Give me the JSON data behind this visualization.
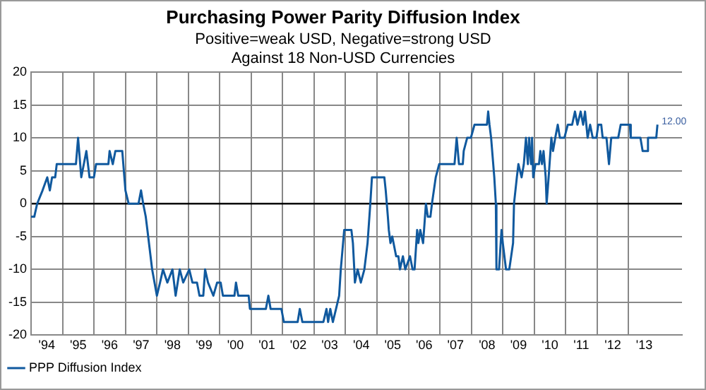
{
  "chart_data": {
    "type": "line",
    "title": "Purchasing Power Parity Diffusion Index",
    "subtitle": "Positive=weak USD, Negative=strong USD\nAgainst 18 Non-USD Currencies",
    "x": [
      "1994-01-01",
      "1994-02-07",
      "1994-03-13",
      "1994-05-14",
      "1994-07-08",
      "1994-08-07",
      "1994-09-02",
      "1994-10-08",
      "1994-10-26",
      "1995-06-06",
      "1995-07-01",
      "1995-08-07",
      "1995-10-05",
      "1995-11-11",
      "1996-01-01",
      "1996-01-26",
      "1996-06-17",
      "1996-07-01",
      "1996-08-07",
      "1996-09-06",
      "1996-11-25",
      "1997-01-01",
      "1997-02-07",
      "1997-06-02",
      "1997-07-01",
      "1997-07-26",
      "1997-08-25",
      "1997-09-13",
      "1997-11-07",
      "1998-01-01",
      "1998-02-07",
      "1998-03-13",
      "1998-05-03",
      "1998-07-01",
      "1998-08-07",
      "1998-09-24",
      "1998-11-03",
      "1999-01-12",
      "1999-02-18",
      "1999-04-12",
      "1999-05-11",
      "1999-06-24",
      "1999-07-15",
      "1999-08-18",
      "1999-10-19",
      "1999-12-02",
      "2000-01-12",
      "2000-02-07",
      "2000-06-20",
      "2000-07-08",
      "2000-08-03",
      "2000-12-02",
      "2000-12-17",
      "2001-06-20",
      "2001-07-19",
      "2001-08-14",
      "2001-12-17",
      "2002-01-15",
      "2002-06-24",
      "2002-07-19",
      "2002-08-18",
      "2003-04-19",
      "2003-05-25",
      "2003-06-13",
      "2003-07-08",
      "2003-08-07",
      "2003-09-13",
      "2003-10-19",
      "2003-11-07",
      "2003-12-17",
      "2004-03-09",
      "2004-03-27",
      "2004-04-12",
      "2004-04-19",
      "2004-05-21",
      "2004-06-27",
      "2004-08-07",
      "2004-09-13",
      "2004-10-15",
      "2004-11-03",
      "2005-03-27",
      "2005-04-12",
      "2005-05-07",
      "2005-05-18",
      "2005-06-06",
      "2005-06-27",
      "2005-08-11",
      "2005-09-06",
      "2005-09-24",
      "2005-10-29",
      "2005-11-25",
      "2006-01-19",
      "2006-02-18",
      "2006-03-13",
      "2006-04-12",
      "2006-04-26",
      "2006-05-18",
      "2006-06-20",
      "2006-07-12",
      "2006-07-23",
      "2006-08-14",
      "2006-09-13",
      "2006-10-01",
      "2006-11-14",
      "2006-12-24",
      "2007-06-20",
      "2007-07-15",
      "2007-08-11",
      "2007-09-24",
      "2007-10-05",
      "2007-11-14",
      "2007-12-27",
      "2008-02-07",
      "2008-07-01",
      "2008-07-15",
      "2008-07-30",
      "2008-08-18",
      "2008-09-24",
      "2008-10-12",
      "2008-10-19",
      "2008-11-18",
      "2008-12-17",
      "2009-01-01",
      "2009-02-07",
      "2009-03-17",
      "2009-04-08",
      "2009-04-30",
      "2009-05-11",
      "2009-06-13",
      "2009-07-01",
      "2009-08-07",
      "2009-09-02",
      "2009-09-27",
      "2009-10-19",
      "2009-11-03",
      "2009-11-25",
      "2009-12-06",
      "2009-12-20",
      "2010-01-15",
      "2010-02-25",
      "2010-03-13",
      "2010-04-01",
      "2010-04-19",
      "2010-05-14",
      "2010-05-25",
      "2010-06-17",
      "2010-07-19",
      "2010-08-07",
      "2010-09-02",
      "2010-10-01",
      "2010-10-26",
      "2010-12-17",
      "2011-01-26",
      "2011-03-17",
      "2011-04-19",
      "2011-05-18",
      "2011-06-24",
      "2011-07-23",
      "2011-08-14",
      "2011-08-29",
      "2011-09-13",
      "2011-10-12",
      "2011-11-11",
      "2011-12-24",
      "2012-01-15",
      "2012-02-18",
      "2012-03-06",
      "2012-04-19",
      "2012-05-18",
      "2012-06-13",
      "2012-09-02",
      "2012-10-01",
      "2013-01-15",
      "2013-01-26",
      "2013-05-18",
      "2013-06-13",
      "2013-08-03",
      "2013-08-14",
      "2013-11-18",
      "2013-12-02"
    ],
    "series": [
      {
        "name": "PPP Diffusion Index",
        "color": "#10599e",
        "values": [
          -2,
          -2,
          0,
          2,
          4,
          2,
          4,
          4,
          6,
          6,
          10,
          4,
          8,
          4,
          4,
          6,
          6,
          8,
          6,
          8,
          8,
          2,
          0,
          0,
          2,
          0,
          -2,
          -4,
          -10,
          -14,
          -12,
          -10,
          -12,
          -10,
          -14,
          -10,
          -12,
          -10,
          -12,
          -12,
          -14,
          -14,
          -10,
          -12,
          -14,
          -12,
          -12,
          -14,
          -14,
          -12,
          -14,
          -14,
          -16,
          -16,
          -14,
          -16,
          -16,
          -18,
          -18,
          -16,
          -18,
          -18,
          -16,
          -18,
          -16,
          -18,
          -16,
          -14,
          -10,
          -4,
          -4,
          -6,
          -10,
          -12,
          -10,
          -12,
          -10,
          -6,
          0,
          4,
          4,
          2,
          -2,
          -4,
          -6,
          -5,
          -8,
          -8,
          -10,
          -8,
          -10,
          -8,
          -10,
          -10,
          -4,
          -6,
          -4,
          -6,
          -2,
          0,
          -2,
          -2,
          0,
          4,
          6,
          6,
          10,
          6,
          6,
          8,
          10,
          10,
          12,
          12,
          14,
          12,
          10,
          4,
          0,
          -10,
          -10,
          -4,
          -6,
          -10,
          -10,
          -8,
          -6,
          0,
          4,
          6,
          4,
          6,
          10,
          6,
          10,
          6,
          10,
          4,
          6,
          6,
          8,
          6,
          8,
          4,
          0,
          4,
          10,
          8,
          10,
          12,
          10,
          10,
          12,
          12,
          14,
          12,
          14,
          12,
          14,
          12,
          10,
          12,
          10,
          10,
          12,
          12,
          10,
          10,
          6,
          10,
          10,
          12,
          12,
          10,
          10,
          8,
          8,
          10,
          10,
          12
        ]
      }
    ],
    "xlim": [
      "1994-01-01",
      "2014-09-13"
    ],
    "xticks": [
      {
        "value": "1994-01-01",
        "label": null
      },
      {
        "value": "1994-07-02",
        "label": "'94"
      },
      {
        "value": "1995-01-01",
        "label": null
      },
      {
        "value": "1995-07-02",
        "label": "'95"
      },
      {
        "value": "1996-01-01",
        "label": null
      },
      {
        "value": "1996-07-02",
        "label": "'96"
      },
      {
        "value": "1997-01-01",
        "label": null
      },
      {
        "value": "1997-07-02",
        "label": "'97"
      },
      {
        "value": "1998-01-01",
        "label": null
      },
      {
        "value": "1998-07-02",
        "label": "'98"
      },
      {
        "value": "1999-01-01",
        "label": null
      },
      {
        "value": "1999-07-02",
        "label": "'99"
      },
      {
        "value": "2000-01-01",
        "label": null
      },
      {
        "value": "2000-07-02",
        "label": "'00"
      },
      {
        "value": "2001-01-01",
        "label": null
      },
      {
        "value": "2001-07-02",
        "label": "'01"
      },
      {
        "value": "2002-01-01",
        "label": null
      },
      {
        "value": "2002-07-02",
        "label": "'02"
      },
      {
        "value": "2003-01-01",
        "label": null
      },
      {
        "value": "2003-07-02",
        "label": "'03"
      },
      {
        "value": "2004-01-01",
        "label": null
      },
      {
        "value": "2004-07-02",
        "label": "'04"
      },
      {
        "value": "2005-01-01",
        "label": null
      },
      {
        "value": "2005-07-02",
        "label": "'05"
      },
      {
        "value": "2006-01-01",
        "label": null
      },
      {
        "value": "2006-07-02",
        "label": "'06"
      },
      {
        "value": "2007-01-01",
        "label": null
      },
      {
        "value": "2007-07-02",
        "label": "'07"
      },
      {
        "value": "2008-01-01",
        "label": null
      },
      {
        "value": "2008-07-02",
        "label": "'08"
      },
      {
        "value": "2009-01-01",
        "label": null
      },
      {
        "value": "2009-07-02",
        "label": "'09"
      },
      {
        "value": "2010-01-01",
        "label": null
      },
      {
        "value": "2010-07-02",
        "label": "'10"
      },
      {
        "value": "2011-01-01",
        "label": null
      },
      {
        "value": "2011-07-02",
        "label": "'11"
      },
      {
        "value": "2012-01-01",
        "label": null
      },
      {
        "value": "2012-07-02",
        "label": "'12"
      },
      {
        "value": "2013-01-01",
        "label": null
      },
      {
        "value": "2013-07-02",
        "label": "'13"
      }
    ],
    "ylim": [
      -20,
      20
    ],
    "yticks": [
      -20,
      -15,
      -10,
      -5,
      0,
      5,
      10,
      15,
      20
    ],
    "grid": true,
    "legend": "bottom left",
    "marker": "none",
    "line_style": "solid",
    "annotations": [
      {
        "text": "12.00",
        "x": "2013-12-02",
        "y": 12
      }
    ]
  }
}
